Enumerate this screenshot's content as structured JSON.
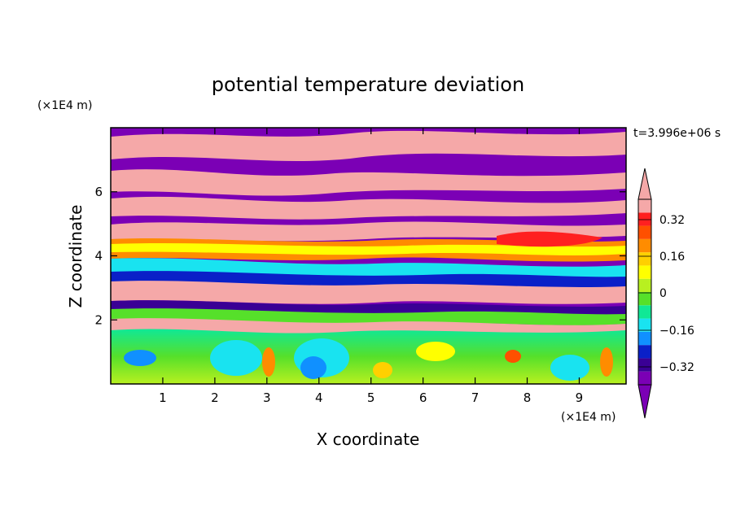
{
  "chart_data": {
    "type": "heatmap",
    "title": "potential temperature deviation",
    "xlabel": "X coordinate",
    "ylabel": "Z coordinate",
    "x_unit": "(×1E4 m)",
    "y_unit": "(×1E4 m)",
    "time_label": "t=3.996e+06 s",
    "xlim": [
      0,
      9.9
    ],
    "ylim": [
      0,
      8
    ],
    "x_ticks": [
      "1",
      "2",
      "3",
      "4",
      "5",
      "6",
      "7",
      "8",
      "9"
    ],
    "y_ticks": [
      "2",
      "4",
      "6"
    ],
    "colorbar": {
      "levels": [
        "0.32",
        "0.16",
        "0",
        "−0.16",
        "−0.32"
      ],
      "colors": [
        "#7b00b5",
        "#3a0095",
        "#0a20c8",
        "#1090ff",
        "#19e3f0",
        "#10e896",
        "#56e02a",
        "#b8f020",
        "#ffff00",
        "#ffd000",
        "#ff8c00",
        "#ff5000",
        "#ff2020",
        "#f5a8a8"
      ]
    }
  }
}
